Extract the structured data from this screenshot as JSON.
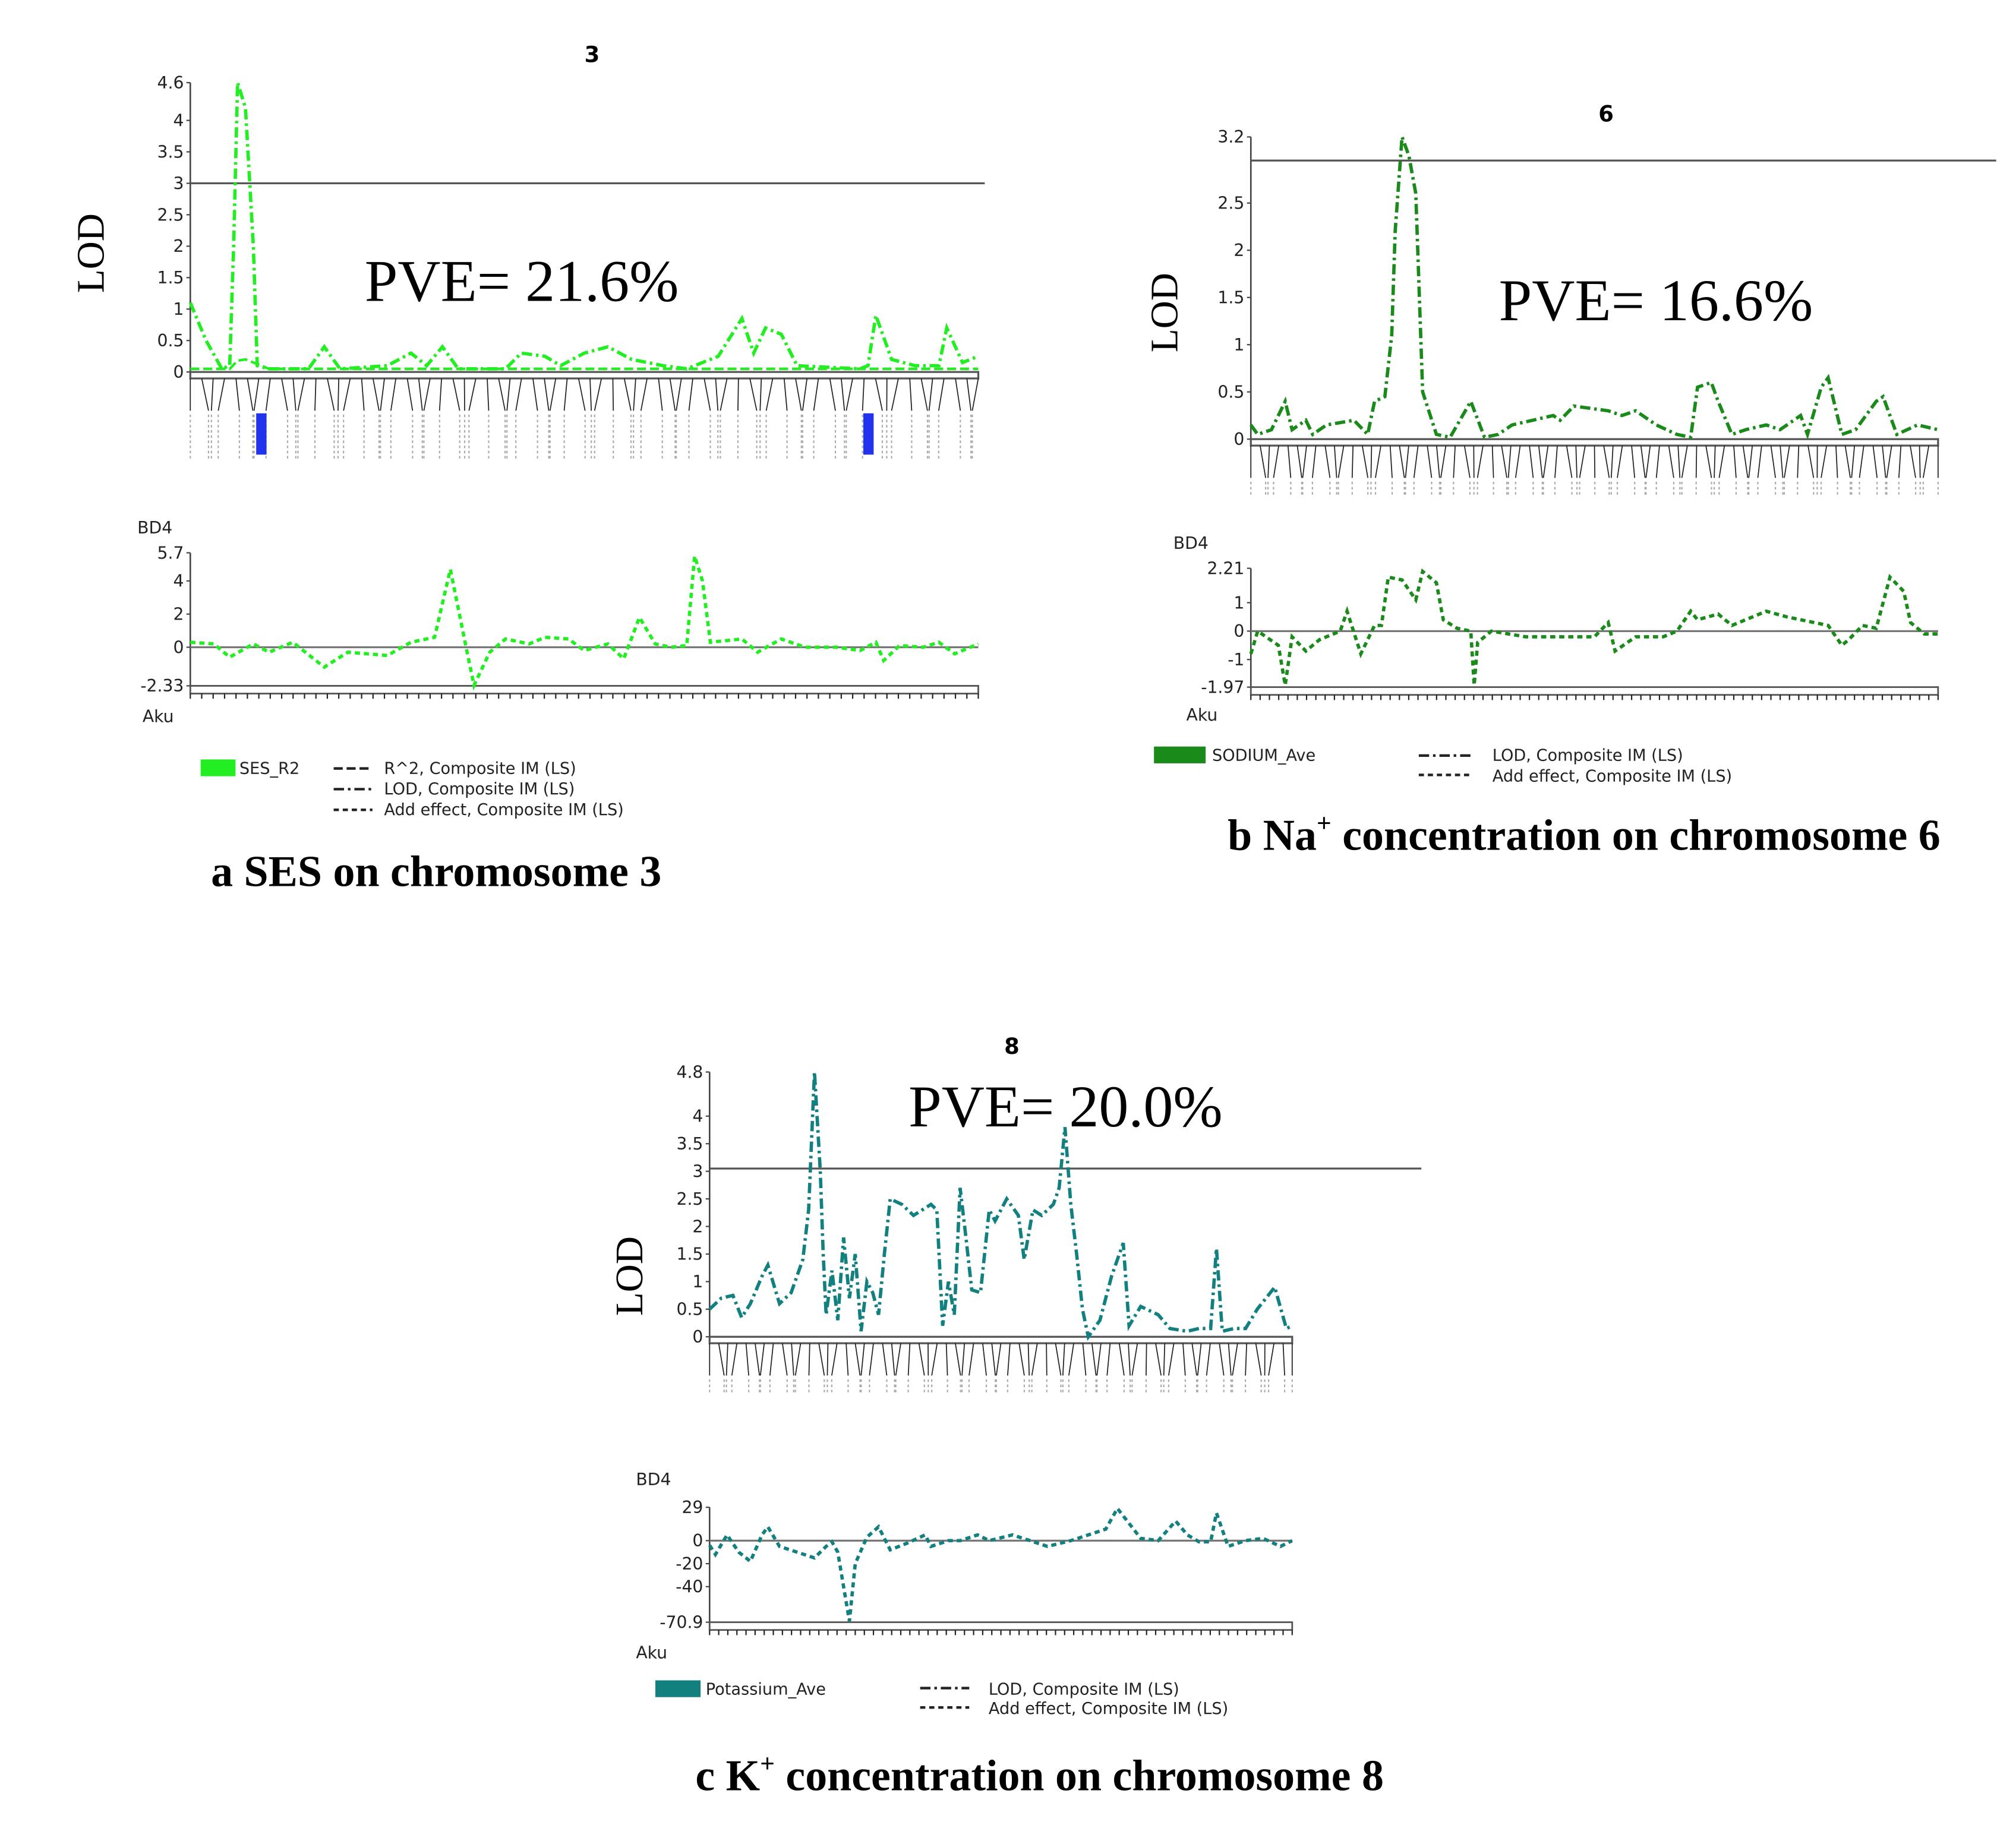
{
  "chart_data": [
    {
      "type": "line",
      "panel_caption": [
        "a SES on chromosome 3"
      ],
      "title": "3",
      "pve": "PVE= 21.6%",
      "ylabel": "LOD",
      "effect_label": "BD4",
      "x_label": "Aku",
      "color": "#22ee22",
      "lod_ylim": [
        0,
        4.6
      ],
      "lod_ticks": [
        "0",
        "0.5",
        "1",
        "1.5",
        "2",
        "2.5",
        "3",
        "3.5",
        "4",
        "4.6"
      ],
      "threshold": 3.0,
      "effect_ylim": [
        -2.33,
        5.7
      ],
      "effect_ticks": [
        "-2.33",
        "0",
        "2",
        "4",
        "5.7"
      ],
      "legend": {
        "trait": "SES_R2",
        "entries": [
          "R^2, Composite IM (LS)",
          "LOD, Composite IM (LS)",
          "Add effect, Composite IM (LS)"
        ]
      },
      "series": [
        {
          "name": "LOD, Composite IM (LS)",
          "x": [
            0,
            2,
            4,
            5,
            5.5,
            6,
            7,
            8,
            8.5,
            10,
            15,
            17,
            19,
            25,
            28,
            30,
            32,
            34,
            40,
            42,
            45,
            47,
            50,
            53,
            56,
            60,
            63,
            67,
            70,
            71.5,
            73,
            75,
            77,
            85,
            86,
            87,
            89,
            92,
            95,
            96,
            98,
            100
          ],
          "y": [
            1.1,
            0.5,
            0.05,
            0.1,
            2,
            4.6,
            4.2,
            2,
            0.1,
            0.05,
            0.05,
            0.4,
            0.05,
            0.1,
            0.3,
            0.1,
            0.4,
            0.05,
            0.05,
            0.3,
            0.25,
            0.1,
            0.3,
            0.4,
            0.2,
            0.1,
            0.05,
            0.25,
            0.85,
            0.3,
            0.7,
            0.6,
            0.1,
            0.05,
            0.1,
            0.9,
            0.2,
            0.1,
            0.1,
            0.7,
            0.15,
            0.25
          ]
        },
        {
          "name": "R^2, Composite IM (LS)",
          "x": [
            0,
            5,
            6,
            7,
            8,
            10,
            30,
            60,
            100
          ],
          "y": [
            0.05,
            0.05,
            0.18,
            0.2,
            0.15,
            0.05,
            0.05,
            0.05,
            0.05
          ]
        },
        {
          "name": "Add effect, Composite IM (LS)",
          "x": [
            0,
            3,
            5,
            8,
            10,
            13,
            17,
            20,
            25,
            28,
            30,
            31,
            33,
            35,
            36,
            38,
            40,
            43,
            45,
            48,
            50,
            53,
            55,
            57,
            59,
            61,
            63,
            64,
            65,
            66,
            70,
            72,
            75,
            78,
            82,
            85,
            87,
            88,
            90,
            93,
            95,
            97,
            100
          ],
          "y": [
            0.3,
            0.2,
            -0.6,
            0.2,
            -0.3,
            0.3,
            -1.2,
            -0.3,
            -0.5,
            0.3,
            0.5,
            0.6,
            4.7,
            0,
            -2.3,
            -0.3,
            0.5,
            0.2,
            0.6,
            0.5,
            -0.2,
            0.2,
            -0.7,
            1.8,
            0.2,
            0,
            0.1,
            5.5,
            4,
            0.3,
            0.5,
            -0.3,
            0.5,
            0,
            0,
            -0.2,
            0.3,
            -0.8,
            0.1,
            0,
            0.3,
            -0.4,
            0.2
          ]
        }
      ]
    },
    {
      "type": "line",
      "panel_caption": [
        "b  Na",
        "+",
        " concentration on chromosome 6"
      ],
      "title": "6",
      "pve": "PVE= 16.6%",
      "ylabel": "LOD",
      "effect_label": "BD4",
      "x_label": "Aku",
      "color": "#1a8a1a",
      "lod_ylim": [
        0,
        3.2
      ],
      "lod_ticks": [
        "0",
        "0.5",
        "1",
        "1.5",
        "2",
        "2.5",
        "3.2"
      ],
      "threshold": 2.95,
      "effect_ylim": [
        -1.97,
        2.21
      ],
      "effect_ticks": [
        "-1.97",
        "-1",
        "0",
        "1",
        "2.21"
      ],
      "legend": {
        "trait": "SODIUM_Ave",
        "entries": [
          "LOD, Composite IM (LS)",
          "Add effect, Composite IM (LS)"
        ]
      },
      "series": [
        {
          "name": "LOD, Composite IM (LS)",
          "x": [
            0,
            1,
            3,
            5,
            6,
            8,
            9,
            11,
            15,
            17,
            18,
            19.5,
            20.5,
            21,
            22,
            23,
            24,
            25,
            27,
            29,
            32,
            34,
            36,
            38,
            44,
            45,
            47,
            52,
            54,
            56,
            59,
            62,
            64,
            65,
            67,
            68,
            70,
            72,
            75,
            77,
            80,
            81,
            83,
            84,
            86,
            88,
            91,
            92,
            94,
            97,
            100
          ],
          "y": [
            0.15,
            0.05,
            0.1,
            0.4,
            0.1,
            0.2,
            0.05,
            0.15,
            0.2,
            0.05,
            0.4,
            0.45,
            1.1,
            2.2,
            3.2,
            3.0,
            2.6,
            0.5,
            0.05,
            0.02,
            0.4,
            0.02,
            0.05,
            0.15,
            0.25,
            0.2,
            0.35,
            0.3,
            0.25,
            0.3,
            0.15,
            0.05,
            0.02,
            0.55,
            0.6,
            0.4,
            0.05,
            0.1,
            0.15,
            0.1,
            0.25,
            0.05,
            0.55,
            0.65,
            0.05,
            0.1,
            0.4,
            0.45,
            0.05,
            0.15,
            0.1
          ]
        },
        {
          "name": "Add effect, Composite IM (LS)",
          "x": [
            0,
            1,
            4,
            5,
            6,
            8,
            10,
            13,
            14,
            16,
            18,
            19,
            20,
            22,
            24,
            25,
            27,
            28,
            30,
            32,
            32.5,
            33,
            35,
            40,
            50,
            52,
            53,
            56,
            60,
            62,
            64,
            65,
            68,
            70,
            75,
            78,
            80,
            84,
            86,
            87,
            89,
            91,
            93,
            95,
            96,
            98,
            100
          ],
          "y": [
            -0.8,
            0,
            -0.5,
            -1.9,
            -0.2,
            -0.7,
            -0.3,
            0,
            0.7,
            -0.8,
            0.2,
            0.2,
            1.9,
            1.8,
            1.1,
            2.1,
            1.7,
            0.4,
            0.1,
            0,
            -1.9,
            -0.4,
            0,
            -0.2,
            -0.2,
            0.3,
            -0.7,
            -0.2,
            -0.2,
            0,
            0.7,
            0.4,
            0.6,
            0.2,
            0.7,
            0.5,
            0.4,
            0.2,
            -0.5,
            -0.3,
            0.2,
            0.1,
            1.9,
            1.4,
            0.3,
            -0.1,
            -0.1
          ]
        }
      ]
    },
    {
      "type": "line",
      "panel_caption": [
        "c  K",
        "+",
        " concentration on chromosome 8"
      ],
      "title": "8",
      "pve": "PVE= 20.0%",
      "ylabel": "LOD",
      "effect_label": "BD4",
      "x_label": "Aku",
      "color": "#138080",
      "lod_ylim": [
        0,
        4.8
      ],
      "lod_ticks": [
        "0",
        "0.5",
        "1",
        "1.5",
        "2",
        "2.5",
        "3",
        "3.5",
        "4",
        "4.8"
      ],
      "threshold": 3.05,
      "effect_ylim": [
        -70.9,
        29
      ],
      "effect_ticks": [
        "-70.9",
        "-40",
        "-20",
        "0",
        "29"
      ],
      "legend": {
        "trait": "Potassium_Ave",
        "entries": [
          "LOD, Composite IM (LS)",
          "Add effect, Composite IM (LS)"
        ]
      },
      "series": [
        {
          "name": "LOD, Composite IM (LS)",
          "x": [
            0,
            2,
            4,
            5.5,
            7,
            9,
            10,
            12,
            14,
            16,
            17,
            18,
            19,
            19.5,
            20,
            21,
            22,
            23,
            24,
            25,
            26,
            27,
            28,
            29,
            30,
            31,
            33,
            35,
            38,
            39,
            40,
            41,
            42,
            43,
            44,
            45,
            46.5,
            48,
            49,
            51,
            53,
            54,
            55.5,
            57,
            59,
            60,
            61,
            62,
            63,
            64,
            65,
            67,
            69,
            71,
            72,
            74,
            77,
            79,
            82,
            84,
            86,
            87,
            88,
            90,
            92,
            94,
            97,
            99,
            100
          ],
          "y": [
            0.5,
            0.7,
            0.75,
            0.35,
            0.6,
            1.1,
            1.3,
            0.6,
            0.8,
            1.4,
            2.3,
            4.8,
            3.0,
            1.5,
            0.4,
            1.2,
            0.3,
            1.8,
            0.7,
            1.5,
            0.1,
            1.0,
            0.8,
            0.4,
            1.5,
            2.5,
            2.4,
            2.2,
            2.4,
            2.3,
            0.2,
            1.0,
            0.4,
            2.7,
            1.8,
            0.85,
            0.8,
            2.3,
            2.1,
            2.5,
            2.2,
            1.4,
            2.3,
            2.2,
            2.4,
            2.7,
            3.8,
            2.4,
            1.5,
            0.5,
            0,
            0.3,
            1.1,
            1.7,
            0.2,
            0.55,
            0.4,
            0.15,
            0.1,
            0.15,
            0.15,
            1.6,
            0.1,
            0.15,
            0.15,
            0.5,
            0.9,
            0.15,
            0.2
          ]
        },
        {
          "name": "Add effect, Composite IM (LS)",
          "x": [
            0,
            1,
            3,
            5,
            7,
            9,
            10,
            12,
            15,
            18,
            20,
            21,
            22,
            23,
            24,
            25,
            27,
            29,
            31,
            34,
            37,
            38,
            41,
            43,
            46,
            48,
            52,
            55,
            58,
            62,
            65,
            68,
            70,
            72,
            74,
            77,
            80,
            82,
            84,
            86,
            87,
            89,
            92,
            95,
            98,
            100
          ],
          "y": [
            -4,
            -12,
            5,
            -10,
            -18,
            5,
            12,
            -5,
            -10,
            -15,
            -5,
            -1,
            -10,
            -40,
            -70,
            -20,
            3,
            12,
            -8,
            -2,
            5,
            -5,
            0,
            0,
            5,
            0,
            5,
            0,
            -5,
            0,
            5,
            10,
            28,
            15,
            2,
            0,
            17,
            5,
            -1,
            -1,
            24,
            -5,
            0,
            2,
            -5,
            0
          ]
        }
      ]
    }
  ]
}
